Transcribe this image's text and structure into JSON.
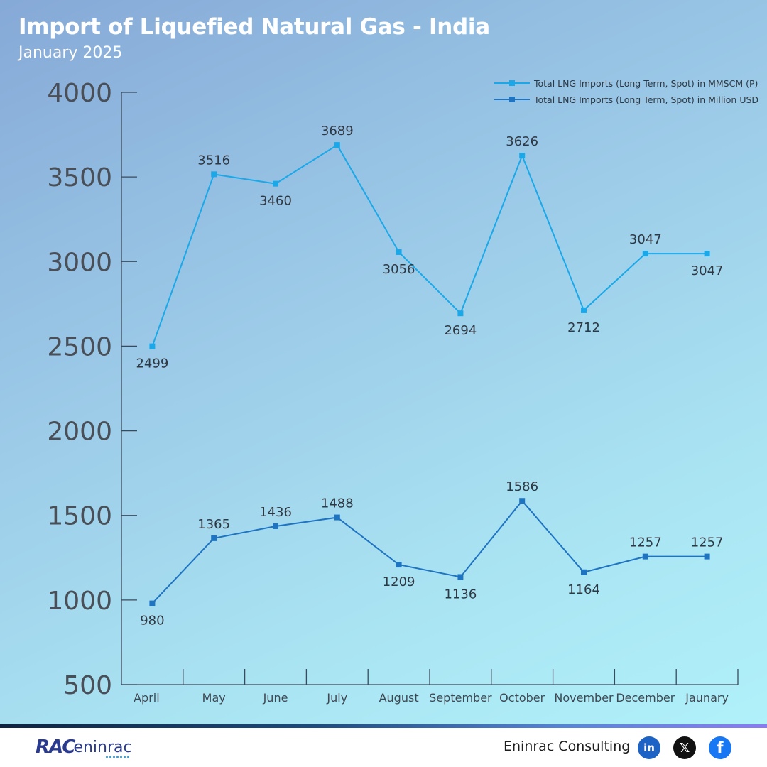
{
  "title": "Import of Liquefied Natural Gas - India",
  "subtitle": "January 2025",
  "chart_data": {
    "type": "line",
    "categories": [
      "April",
      "May",
      "June",
      "July",
      "August",
      "September",
      "October",
      "November",
      "December",
      "Jaunary"
    ],
    "series": [
      {
        "name": "Total LNG Imports (Long Term, Spot) in MMSCM (P)",
        "values": [
          2499,
          3516,
          3460,
          3689,
          3056,
          2694,
          3626,
          2712,
          3047,
          3047
        ],
        "color": "#1aa8e8"
      },
      {
        "name": "Total LNG Imports (Long Term, Spot) in Million USD",
        "values": [
          980,
          1365,
          1436,
          1488,
          1209,
          1136,
          1586,
          1164,
          1257,
          1257
        ],
        "color": "#1f74c2"
      }
    ],
    "ylim": [
      500,
      4000
    ],
    "yticks": [
      500,
      1000,
      1500,
      2000,
      2500,
      3000,
      3500,
      4000
    ],
    "legend_position": "top-right",
    "grid": false
  },
  "footer": {
    "logo_mark": "RAC",
    "logo_text": "eninrac",
    "brand": "Eninrac Consulting",
    "social": [
      {
        "icon": "linkedin-icon",
        "label": "in"
      },
      {
        "icon": "x-icon",
        "label": "𝕏"
      },
      {
        "icon": "facebook-icon",
        "label": "f"
      }
    ]
  }
}
